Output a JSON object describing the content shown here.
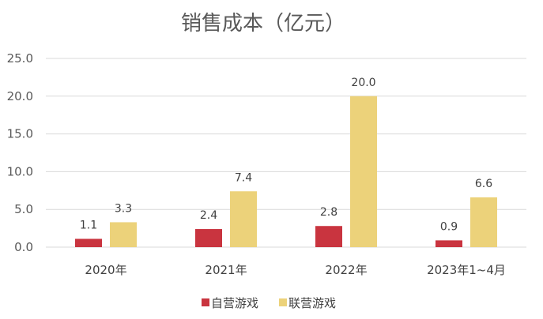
{
  "chart_data": {
    "type": "bar",
    "title": "销售成本（亿元）",
    "categories": [
      "2020年",
      "2021年",
      "2022年",
      "2023年1~4月"
    ],
    "series": [
      {
        "name": "自营游戏",
        "values": [
          1.1,
          2.4,
          2.8,
          0.9
        ],
        "color": "#c9343f"
      },
      {
        "name": "联营游戏",
        "values": [
          3.3,
          7.4,
          20.0,
          6.6
        ],
        "color": "#ecd27a"
      }
    ],
    "ylim": [
      0,
      25
    ],
    "yticks": [
      "0.0",
      "5.0",
      "10.0",
      "15.0",
      "20.0",
      "25.0"
    ],
    "data_labels": [
      [
        "1.1",
        "2.4",
        "2.8",
        "0.9"
      ],
      [
        "3.3",
        "7.4",
        "20.0",
        "6.6"
      ]
    ],
    "grid": true,
    "legend_position": "bottom"
  }
}
